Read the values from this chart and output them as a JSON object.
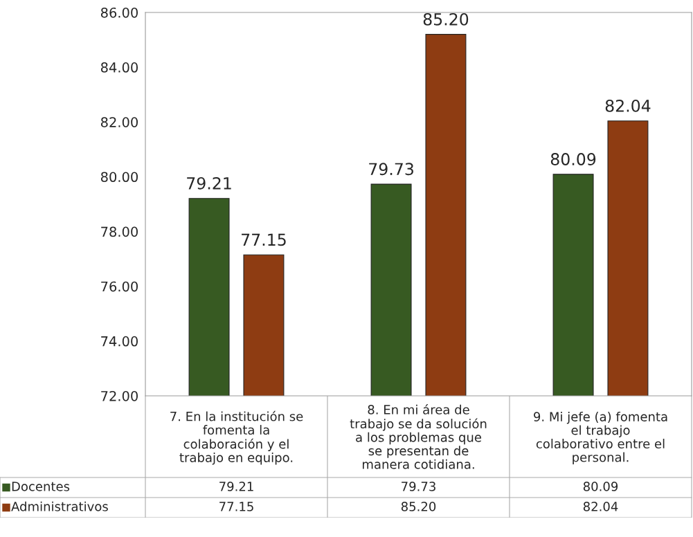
{
  "chart_data": {
    "type": "bar",
    "categories": [
      "7. En la institución se\nfomenta la\ncolaboración y el\ntrabajo en equipo.",
      "8. En mi área de\ntrabajo se da solución\na los problemas que\nse presentan de\nmanera cotidiana.",
      "9. Mi jefe (a) fomenta\nel trabajo\ncolaborativo entre el\npersonal."
    ],
    "series": [
      {
        "name": "Docentes",
        "color": "#375a22",
        "values": [
          79.21,
          79.73,
          80.09
        ],
        "value_labels": [
          "79.21",
          "79.73",
          "80.09"
        ]
      },
      {
        "name": "Administrativos",
        "color": "#8e3c12",
        "values": [
          77.15,
          85.2,
          82.04
        ],
        "value_labels": [
          "77.15",
          "85.20",
          "82.04"
        ]
      }
    ],
    "ylim": [
      72,
      86
    ],
    "yticks": [
      {
        "value": 72,
        "label": "72.00"
      },
      {
        "value": 74,
        "label": "74.00"
      },
      {
        "value": 76,
        "label": "76.00"
      },
      {
        "value": 78,
        "label": "78.00"
      },
      {
        "value": 80,
        "label": "80.00"
      },
      {
        "value": 82,
        "label": "82.00"
      },
      {
        "value": 84,
        "label": "84.00"
      },
      {
        "value": 86,
        "label": "86.00"
      }
    ],
    "grid": false,
    "legend": "bottom left"
  }
}
